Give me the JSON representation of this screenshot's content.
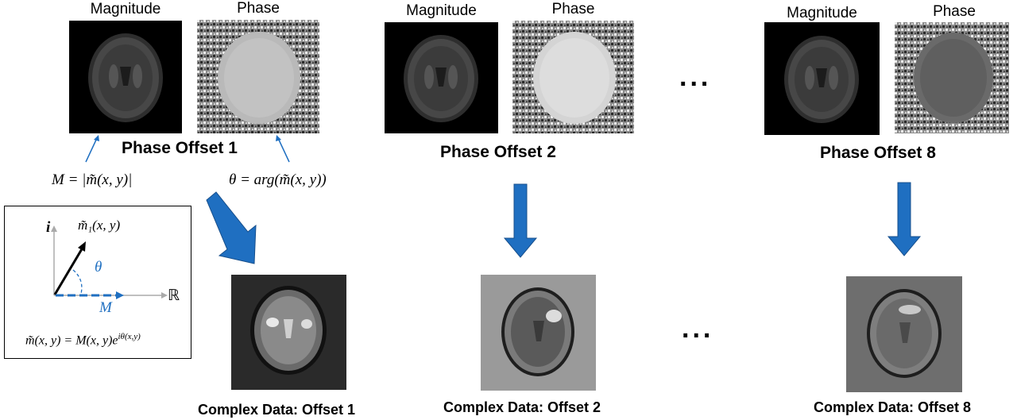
{
  "top_panels": [
    {
      "magnitude_label": "Magnitude",
      "phase_label": "Phase",
      "title": "Phase Offset 1",
      "phase_tone": "#b9b9b9"
    },
    {
      "magnitude_label": "Magnitude",
      "phase_label": "Phase",
      "title": "Phase Offset 2",
      "phase_tone": "#d4d4d4"
    },
    {
      "magnitude_label": "Magnitude",
      "phase_label": "Phase",
      "title": "Phase Offset 8",
      "phase_tone": "#6a6a6a"
    }
  ],
  "formulas": {
    "magnitude": "M = |m̃(x, y)|",
    "phase": "θ = arg(m̃(x, y))"
  },
  "inset": {
    "imag_axis": "i",
    "real_axis": "ℝ",
    "vector_label": "m̃₁(x, y)",
    "angle_label": "θ",
    "magnitude_label": "M",
    "equation": "m̃(x, y) = M(x, y)e^{iθ(x,y)}",
    "equation_main": "m̃(x, y) = M(x, y)e",
    "equation_sup": "iθ(x,y)"
  },
  "ellipsis": "...",
  "complex_panels": [
    {
      "title": "Complex Data: Offset 1",
      "bg": "#2a2a2a"
    },
    {
      "title": "Complex Data: Offset 2",
      "bg": "#9a9a9a"
    },
    {
      "title": "Complex Data: Offset 8",
      "bg": "#6e6e6e"
    }
  ],
  "colors": {
    "arrow": "#1f6fc1",
    "accent": "#1f6fc1"
  }
}
